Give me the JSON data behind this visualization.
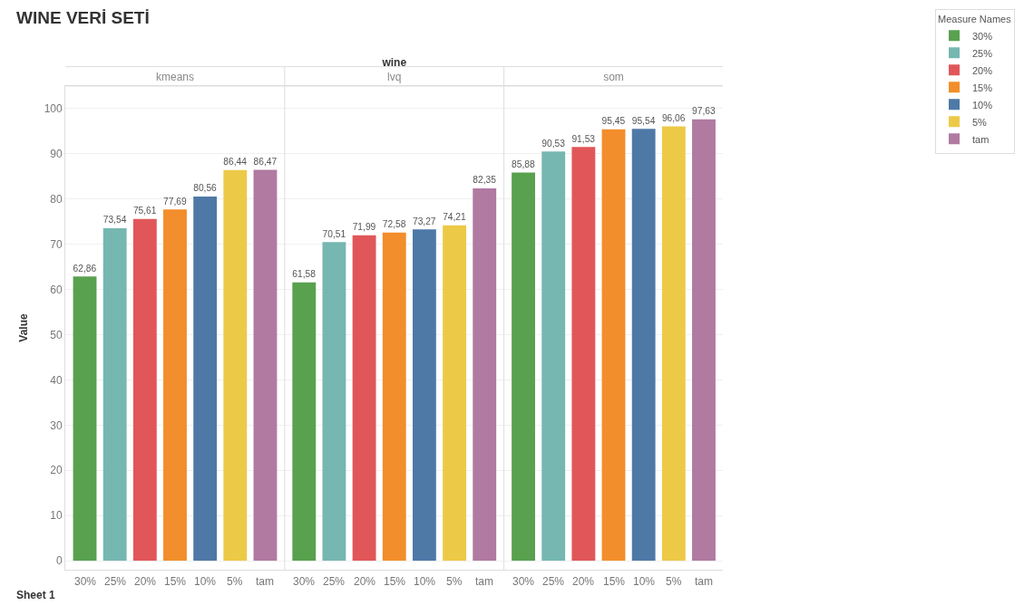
{
  "chart_data": {
    "type": "bar",
    "title": "WINE VERİ SETİ",
    "xlabel": "wine",
    "ylabel": "Value",
    "annotations": [
      "Sheet 1"
    ],
    "legend": "right",
    "legend_title": "Measure Names",
    "grid": "y",
    "categories": [
      "kmeans",
      "lvq",
      "som"
    ],
    "series": [
      {
        "name": "30%",
        "color": "#59a14f",
        "values": [
          62.86,
          61.58,
          85.88
        ],
        "value_labels": [
          "62,86",
          "61,58",
          "85,88"
        ]
      },
      {
        "name": "25%",
        "color": "#76b7b2",
        "values": [
          73.54,
          70.51,
          90.53
        ],
        "value_labels": [
          "73,54",
          "70,51",
          "90,53"
        ]
      },
      {
        "name": "20%",
        "color": "#e15759",
        "values": [
          75.61,
          71.99,
          91.53
        ],
        "value_labels": [
          "75,61",
          "71,99",
          "91,53"
        ]
      },
      {
        "name": "15%",
        "color": "#f28e2b",
        "values": [
          77.69,
          72.58,
          95.45
        ],
        "value_labels": [
          "77,69",
          "72,58",
          "95,45"
        ]
      },
      {
        "name": "10%",
        "color": "#4e79a7",
        "values": [
          80.56,
          73.27,
          95.54
        ],
        "value_labels": [
          "80,56",
          "73,27",
          "95,54"
        ]
      },
      {
        "name": "5%",
        "color": "#edc948",
        "values": [
          86.44,
          74.21,
          96.06
        ],
        "value_labels": [
          "86,44",
          "74,21",
          "96,06"
        ]
      },
      {
        "name": "tam",
        "color": "#b07aa1",
        "values": [
          86.47,
          82.35,
          97.63
        ],
        "value_labels": [
          "86,47",
          "82,35",
          "97,63"
        ]
      }
    ],
    "ylim": [
      -2,
      105
    ],
    "yticks": [
      0,
      10,
      20,
      30,
      40,
      50,
      60,
      70,
      80,
      90,
      100
    ]
  }
}
